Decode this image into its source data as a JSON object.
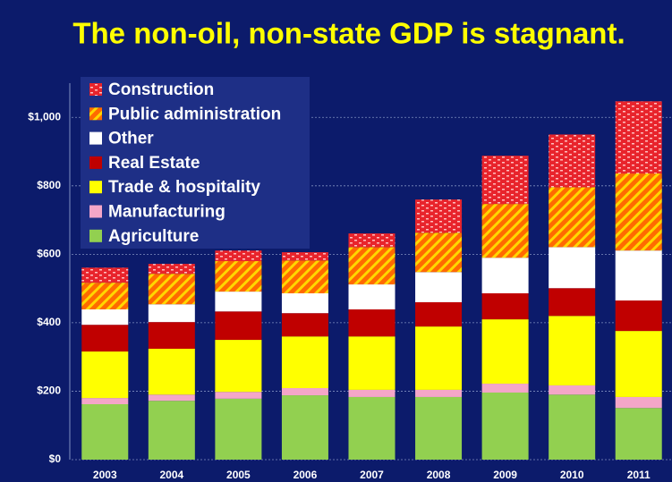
{
  "chart_data": {
    "type": "stacked_bar",
    "title": "The non-oil, non-state GDP is stagnant.",
    "categories": [
      "2003",
      "2004",
      "2005",
      "2006",
      "2007",
      "2008",
      "2009",
      "2010",
      "2011"
    ],
    "series": [
      {
        "name": "Agriculture",
        "color": "#92d050",
        "values": [
          162,
          172,
          178,
          188,
          183,
          183,
          196,
          190,
          151
        ]
      },
      {
        "name": "Manufacturing",
        "color": "#f4a6c8",
        "values": [
          18,
          18,
          20,
          21,
          21,
          21,
          26,
          27,
          32
        ]
      },
      {
        "name": "Trade & hospitality",
        "color": "#ffff00",
        "values": [
          136,
          134,
          152,
          151,
          156,
          185,
          188,
          203,
          193
        ]
      },
      {
        "name": "Real Estate",
        "color": "#c00000",
        "values": [
          78,
          78,
          83,
          68,
          79,
          71,
          76,
          81,
          89
        ]
      },
      {
        "name": "Other",
        "color": "#ffffff",
        "values": [
          45,
          52,
          58,
          58,
          73,
          88,
          104,
          120,
          146
        ]
      },
      {
        "name": "Public administration",
        "color": "#ff6a00",
        "pattern": "stripes",
        "values": [
          78,
          89,
          89,
          96,
          109,
          115,
          157,
          175,
          225
        ]
      },
      {
        "name": "Construction",
        "color": "#e8242c",
        "pattern": "bricks",
        "values": [
          44,
          29,
          31,
          24,
          40,
          97,
          141,
          154,
          211
        ]
      }
    ],
    "ylim": [
      0,
      1100
    ],
    "yticks": [
      {
        "value": 0,
        "label": "$0"
      },
      {
        "value": 200,
        "label": "$200"
      },
      {
        "value": 400,
        "label": "$400"
      },
      {
        "value": 600,
        "label": "$600"
      },
      {
        "value": 800,
        "label": "$800"
      },
      {
        "value": 1000,
        "label": "$1,000"
      }
    ],
    "grid": true
  }
}
